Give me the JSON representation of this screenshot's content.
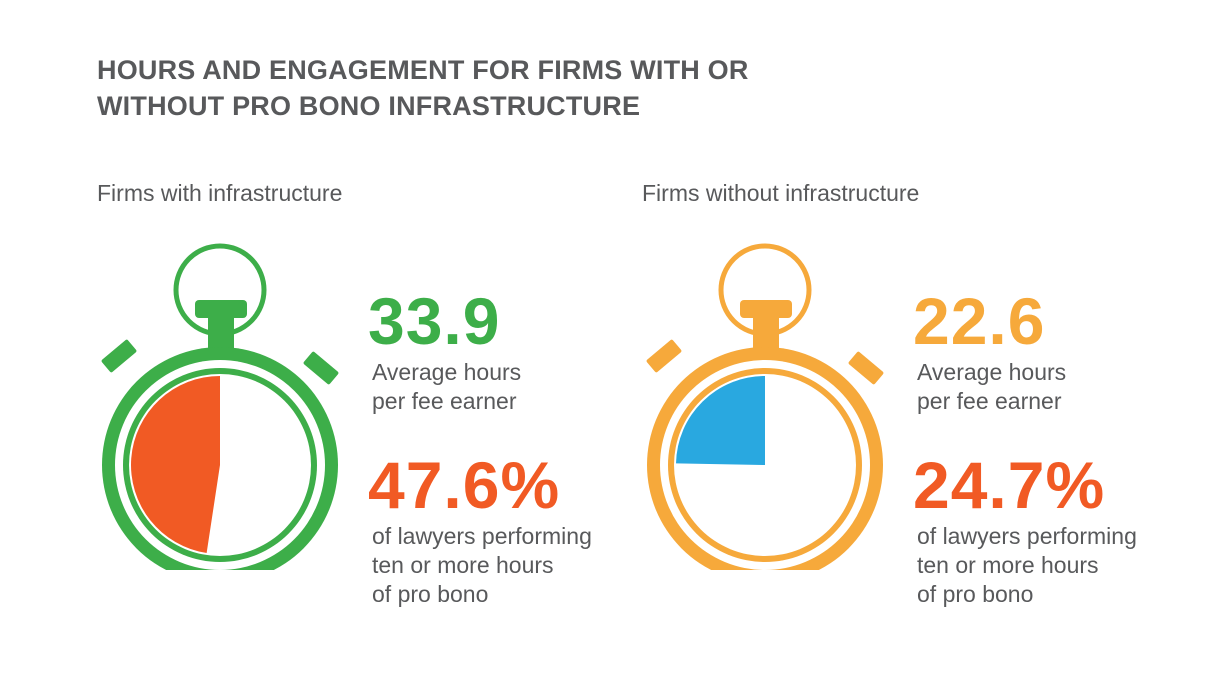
{
  "title_line1": "HOURS AND ENGAGEMENT FOR FIRMS WITH OR",
  "title_line2": "WITHOUT PRO BONO INFRASTRUCTURE",
  "colors": {
    "green": "#3dae49",
    "orange_watch": "#f6a93b",
    "red": "#f15a24",
    "blue": "#29a8e0",
    "gray_text": "#58595b"
  },
  "chart_data": [
    {
      "type": "pie",
      "label": "Firms with infrastructure",
      "avg_hours": "33.9",
      "avg_hours_label": "Average hours\nper fee earner",
      "percent": "47.6%",
      "percent_value": 47.6,
      "percent_label": "of lawyers performing\nten or more hours\nof pro bono"
    },
    {
      "type": "pie",
      "label": "Firms without infrastructure",
      "avg_hours": "22.6",
      "avg_hours_label": "Average hours\nper fee earner",
      "percent": "24.7%",
      "percent_value": 24.7,
      "percent_label": "of lawyers performing\nten or more hours\nof pro bono"
    }
  ]
}
